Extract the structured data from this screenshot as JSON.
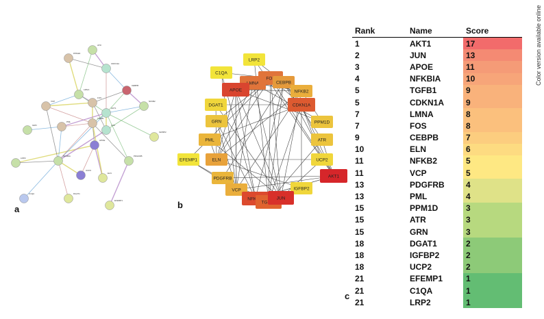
{
  "panel_labels": {
    "a": "a",
    "b": "b",
    "c": "c"
  },
  "side_note": "Color version available online",
  "table": {
    "headers": {
      "rank": "Rank",
      "name": "Name",
      "score": "Score"
    },
    "rows": [
      {
        "rank": "1",
        "name": "AKT1",
        "score": "17",
        "color": "#f26b6b"
      },
      {
        "rank": "2",
        "name": "JUN",
        "score": "13",
        "color": "#f48a73"
      },
      {
        "rank": "3",
        "name": "APOE",
        "score": "11",
        "color": "#f59b77"
      },
      {
        "rank": "4",
        "name": "NFKBIA",
        "score": "10",
        "color": "#f7a579"
      },
      {
        "rank": "5",
        "name": "TGFB1",
        "score": "9",
        "color": "#f9b27b"
      },
      {
        "rank": "5",
        "name": "CDKN1A",
        "score": "9",
        "color": "#f9b27b"
      },
      {
        "rank": "7",
        "name": "LMNA",
        "score": "8",
        "color": "#fbc07d"
      },
      {
        "rank": "7",
        "name": "FOS",
        "score": "8",
        "color": "#fbc07d"
      },
      {
        "rank": "9",
        "name": "CEBPB",
        "score": "7",
        "color": "#fccd7f"
      },
      {
        "rank": "10",
        "name": "ELN",
        "score": "6",
        "color": "#fddb81"
      },
      {
        "rank": "11",
        "name": "NFKB2",
        "score": "5",
        "color": "#fee883"
      },
      {
        "rank": "11",
        "name": "VCP",
        "score": "5",
        "color": "#fee883"
      },
      {
        "rank": "13",
        "name": "PDGFRB",
        "score": "4",
        "color": "#dfe288"
      },
      {
        "rank": "13",
        "name": "PML",
        "score": "4",
        "color": "#dfe288"
      },
      {
        "rank": "15",
        "name": "PPM1D",
        "score": "3",
        "color": "#b7d97f"
      },
      {
        "rank": "15",
        "name": "ATR",
        "score": "3",
        "color": "#b7d97f"
      },
      {
        "rank": "15",
        "name": "GRN",
        "score": "3",
        "color": "#b7d97f"
      },
      {
        "rank": "18",
        "name": "DGAT1",
        "score": "2",
        "color": "#8dca78"
      },
      {
        "rank": "18",
        "name": "IGFBP2",
        "score": "2",
        "color": "#8dca78"
      },
      {
        "rank": "18",
        "name": "UCP2",
        "score": "2",
        "color": "#8dca78"
      },
      {
        "rank": "21",
        "name": "EFEMP1",
        "score": "1",
        "color": "#63bd73"
      },
      {
        "rank": "21",
        "name": "C1QA",
        "score": "1",
        "color": "#63bd73"
      },
      {
        "rank": "21",
        "name": "LRP2",
        "score": "1",
        "color": "#63bd73"
      }
    ]
  },
  "network_b": {
    "nodes": [
      {
        "id": "LRP2",
        "color": "#f2e43a"
      },
      {
        "id": "C1QA",
        "color": "#f2e43a"
      },
      {
        "id": "LMNA",
        "color": "#e0743a"
      },
      {
        "id": "FOS",
        "color": "#e0743a"
      },
      {
        "id": "CEBPB",
        "color": "#e59a3b"
      },
      {
        "id": "APOE",
        "color": "#d9452f"
      },
      {
        "id": "NFKB2",
        "color": "#eaae3c"
      },
      {
        "id": "DGAT1",
        "color": "#f0d63b"
      },
      {
        "id": "CDKN1A",
        "color": "#dd5a30"
      },
      {
        "id": "GRN",
        "color": "#ecc43d"
      },
      {
        "id": "PPM1D",
        "color": "#ecc43d"
      },
      {
        "id": "PML",
        "color": "#eab53b"
      },
      {
        "id": "ATR",
        "color": "#ecc43d"
      },
      {
        "id": "EFEMP1",
        "color": "#f2e43a"
      },
      {
        "id": "ELN",
        "color": "#e8a23b"
      },
      {
        "id": "UCP2",
        "color": "#f0d63b"
      },
      {
        "id": "PDGFRB",
        "color": "#eab53b"
      },
      {
        "id": "AKT1",
        "color": "#d6262a"
      },
      {
        "id": "VCP",
        "color": "#eaae3c"
      },
      {
        "id": "IGFBP2",
        "color": "#f0d63b"
      },
      {
        "id": "NFKBIA",
        "color": "#dc4a2e"
      },
      {
        "id": "TGFB1",
        "color": "#e0632f"
      },
      {
        "id": "JUN",
        "color": "#d8302a"
      }
    ]
  },
  "network_a": {
    "labels": [
      "ATR",
      "PPM1D",
      "CDKN1A",
      "CEBPB",
      "NFKB2",
      "VCP",
      "LMNA",
      "FOS",
      "GRN",
      "PML",
      "TGFB1",
      "AKT1",
      "APOE",
      "IGFBP2",
      "LRP2",
      "UCP2",
      "PDGFRB",
      "ELN",
      "C1QA",
      "DGAT1",
      "EFEMP1",
      "JUN",
      "NFKBIA"
    ],
    "colors": {
      "red": "#c9656f",
      "purple": "#8b7fd4",
      "green": "#c6e0a8",
      "blue": "#b9c8ee",
      "tan": "#d8c3a9",
      "teal": "#b6e3cf",
      "yellow": "#dfe79c"
    }
  }
}
